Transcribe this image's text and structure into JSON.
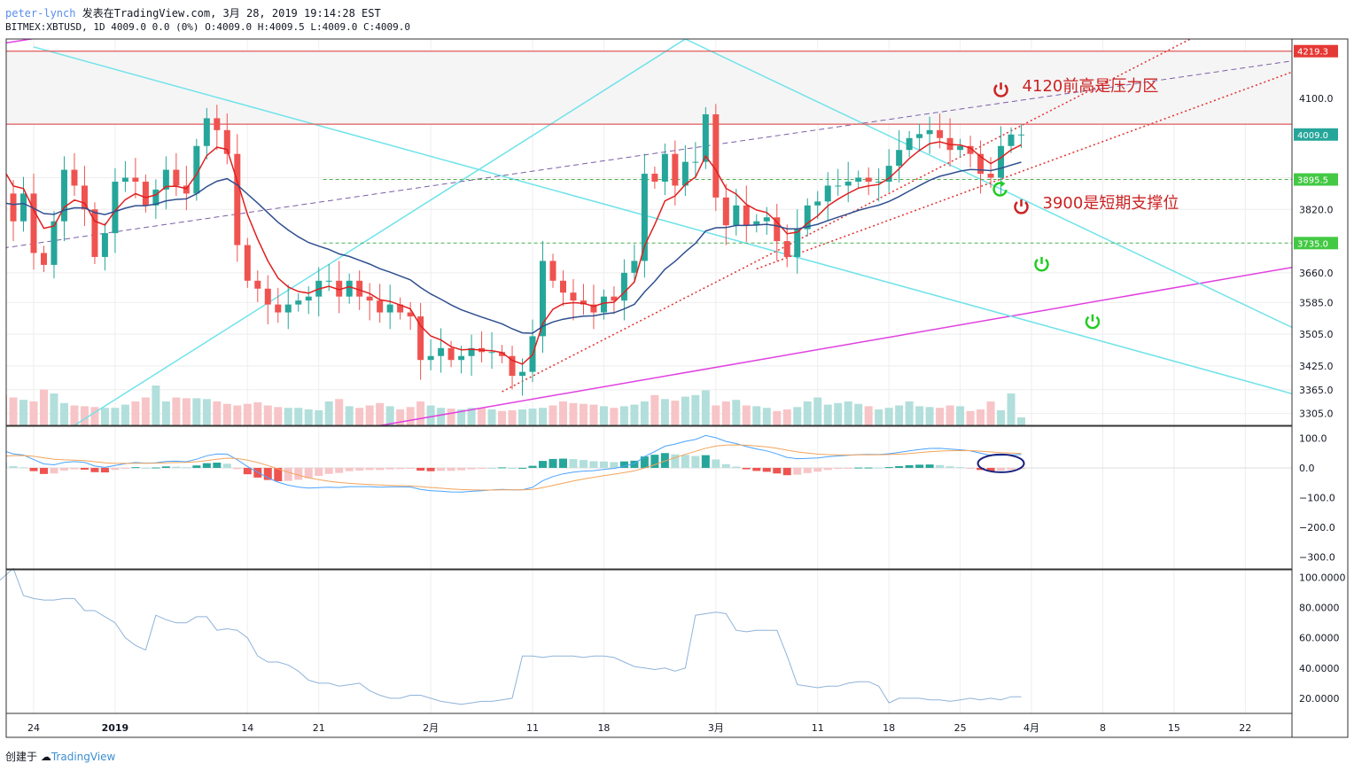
{
  "header": {
    "author": "peter-lynch",
    "published": "发表在TradingView.com, 3月 28, 2019 19:14:28 EST",
    "symbol": "BITMEX:XBTUSD, 1D",
    "change": "4009.0 0.0 (0%)",
    "ohlc": "O:4009.0 H:4009.5 L:4009.0 C:4009.0"
  },
  "footer": {
    "prefix": "创建于",
    "brand": "TradingView"
  },
  "colors": {
    "up": "#26a69a",
    "down": "#ef5350",
    "up_vol": "#b2dfdb",
    "down_vol": "#f7c5c7",
    "ema_fast": "#e02020",
    "ema_slow": "#2f4f8f",
    "cyan_line": "#6fe3ea",
    "magenta_line": "#e040e0",
    "resistance": "#e05a5a",
    "support": "#4caf50",
    "purple_dash": "#7b5ea7",
    "red_dotted": "#e03030",
    "macd_line": "#4aa3ff",
    "signal_line": "#f2a45c",
    "osc_line": "#8fb3d9",
    "grid": "#eeeeee",
    "border": "#333333"
  },
  "annotations": [
    {
      "text": "4120前高是压力区",
      "price": 4120,
      "date": "2019-03-29",
      "icon": "power-icon",
      "color": "#cc2222"
    },
    {
      "text": "3900是短期支撑位",
      "price": 3825,
      "date": "2019-03-31",
      "icon": "power-icon",
      "color": "#cc2222"
    },
    {
      "price": 3865,
      "date": "2019-03-29",
      "icon": "refresh-icon",
      "color": "#22cc22"
    },
    {
      "price": 3680,
      "date": "2019-04-02",
      "icon": "power-icon",
      "color": "#22cc22"
    },
    {
      "price": 3535,
      "date": "2019-04-07",
      "icon": "power-icon",
      "color": "#22cc22"
    }
  ],
  "chart_data": {
    "type": "candlestick",
    "x_start_date": "2018-12-15",
    "price_axis": {
      "ticks": [
        4100.0,
        3900.0,
        3820.0,
        3660.0,
        3585.0,
        3505.0,
        3425.0,
        3365.0,
        3305.0
      ],
      "range": [
        3275,
        4250
      ]
    },
    "price_tags": [
      {
        "text": "4219.3",
        "price": 4219.3,
        "color": "#e53935"
      },
      {
        "text": "4009.0",
        "price": 4009.0,
        "color": "#26a69a"
      },
      {
        "text": "3895.5",
        "price": 3895.5,
        "color": "#43c943"
      },
      {
        "text": "3735.0",
        "price": 3735.0,
        "color": "#43c943"
      }
    ],
    "x_axis": {
      "ticks": [
        {
          "label": "24",
          "date": "2018-12-24"
        },
        {
          "label": "2019",
          "date": "2019-01-01"
        },
        {
          "label": "14",
          "date": "2019-01-14"
        },
        {
          "label": "21",
          "date": "2019-01-21"
        },
        {
          "label": "2月",
          "date": "2019-02-01"
        },
        {
          "label": "11",
          "date": "2019-02-11"
        },
        {
          "label": "18",
          "date": "2019-02-18"
        },
        {
          "label": "3月",
          "date": "2019-03-01"
        },
        {
          "label": "11",
          "date": "2019-03-11"
        },
        {
          "label": "18",
          "date": "2019-03-18"
        },
        {
          "label": "25",
          "date": "2019-03-25"
        },
        {
          "label": "4月",
          "date": "2019-04-01"
        },
        {
          "label": "8",
          "date": "2019-04-08"
        },
        {
          "label": "15",
          "date": "2019-04-15"
        },
        {
          "label": "22",
          "date": "2019-04-22"
        }
      ]
    },
    "close": [
      3730,
      3990,
      4020,
      3980,
      4040,
      3950,
      3860,
      3790,
      3860,
      3710,
      3680,
      3790,
      3920,
      3880,
      3820,
      3700,
      3760,
      3890,
      3900,
      3890,
      3830,
      3870,
      3920,
      3880,
      3860,
      3980,
      4050,
      4020,
      3960,
      3730,
      3640,
      3620,
      3580,
      3560,
      3580,
      3590,
      3600,
      3640,
      3640,
      3600,
      3640,
      3600,
      3590,
      3560,
      3580,
      3560,
      3550,
      3440,
      3450,
      3470,
      3440,
      3450,
      3470,
      3460,
      3460,
      3450,
      3400,
      3410,
      3500,
      3690,
      3640,
      3610,
      3590,
      3580,
      3560,
      3600,
      3590,
      3660,
      3690,
      3910,
      3890,
      3960,
      3880,
      3940,
      3940,
      4060,
      3850,
      3780,
      3830,
      3780,
      3790,
      3800,
      3740,
      3700,
      3770,
      3830,
      3840,
      3880,
      3880,
      3890,
      3900,
      3890,
      3890,
      3930,
      3970,
      4000,
      4010,
      4020,
      4000,
      3970,
      3980,
      3960,
      3910,
      3900,
      3980,
      4009,
      4009
    ],
    "volume": [
      88,
      75,
      60,
      55,
      48,
      40,
      38,
      35,
      32,
      30,
      45,
      40,
      28,
      25,
      24,
      23,
      22,
      22,
      26,
      30,
      35,
      50,
      30,
      35,
      34,
      34,
      33,
      30,
      27,
      25,
      27,
      29,
      25,
      23,
      22,
      22,
      20,
      19,
      30,
      33,
      24,
      22,
      25,
      28,
      24,
      20,
      23,
      30,
      25,
      22,
      21,
      20,
      22,
      22,
      20,
      18,
      19,
      20,
      21,
      22,
      25,
      30,
      28,
      27,
      26,
      24,
      22,
      24,
      26,
      30,
      38,
      33,
      31,
      36,
      38,
      44,
      25,
      30,
      32,
      25,
      24,
      22,
      18,
      20,
      23,
      30,
      35,
      26,
      28,
      30,
      27,
      24,
      20,
      22,
      25,
      30,
      24,
      23,
      22,
      25,
      24,
      18,
      20,
      30,
      19,
      40,
      10
    ],
    "volume_max": 100,
    "ema_fast_period": 5,
    "ema_slow_period": 20,
    "macd": {
      "range": [
        -340,
        140
      ],
      "ticks": [
        100.0,
        0.0,
        -100.0,
        -200.0,
        -300.0
      ]
    },
    "oscillator": {
      "range": [
        10,
        105
      ],
      "ticks": [
        100.0,
        80.0,
        60.0,
        40.0,
        20.0
      ],
      "values": [
        92,
        90,
        86,
        98,
        98,
        94,
        100,
        106,
        88,
        86,
        85,
        85,
        86,
        86,
        78,
        78,
        74,
        70,
        60,
        55,
        52,
        75,
        72,
        70,
        70,
        74,
        74,
        65,
        66,
        65,
        60,
        48,
        44,
        44,
        42,
        38,
        32,
        30,
        30,
        28,
        29,
        30,
        25,
        22,
        20,
        20,
        22,
        22,
        20,
        18,
        17,
        16,
        17,
        18,
        18,
        19,
        20,
        48,
        48,
        47,
        48,
        48,
        48,
        47,
        48,
        48,
        47,
        44,
        41,
        40,
        39,
        40,
        38,
        40,
        75,
        76,
        77,
        76,
        65,
        64,
        65,
        65,
        65,
        48,
        29,
        28,
        27,
        28,
        28,
        30,
        31,
        31,
        28,
        17,
        20,
        20,
        20,
        19,
        19,
        18,
        19,
        20,
        19,
        20,
        19,
        21,
        21
      ]
    },
    "trendlines": [
      {
        "kind": "resistance",
        "price": 4219.3
      },
      {
        "kind": "resistance",
        "price": 4035
      },
      {
        "kind": "support",
        "price": 3895.5
      },
      {
        "kind": "support",
        "price": 3735
      }
    ]
  }
}
